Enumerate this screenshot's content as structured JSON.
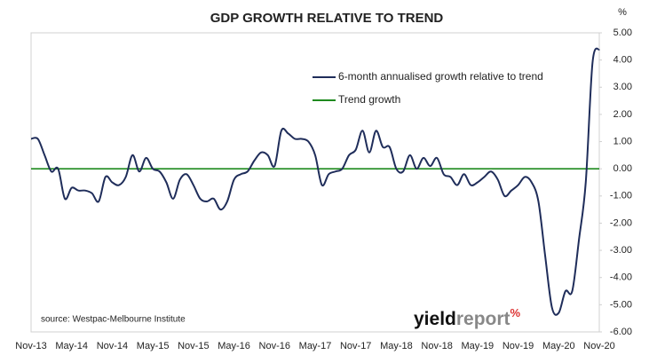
{
  "chart_data": {
    "type": "line",
    "title": "GDP GROWTH RELATIVE TO TREND",
    "y_axis_unit": "%",
    "source": "source: Westpac-Melbourne Institute",
    "logo": [
      "yield",
      "report",
      "%"
    ],
    "categories": [
      "Nov-13",
      null,
      null,
      null,
      null,
      null,
      "May-14",
      null,
      null,
      null,
      null,
      null,
      "Nov-14",
      null,
      null,
      null,
      null,
      null,
      "May-15",
      null,
      null,
      null,
      null,
      null,
      "Nov-15",
      null,
      null,
      null,
      null,
      null,
      "May-16",
      null,
      null,
      null,
      null,
      null,
      "Nov-16",
      null,
      null,
      null,
      null,
      null,
      "May-17",
      null,
      null,
      null,
      null,
      null,
      "Nov-17",
      null,
      null,
      null,
      null,
      null,
      "May-18",
      null,
      null,
      null,
      null,
      null,
      "Nov-18",
      null,
      null,
      null,
      null,
      null,
      "May-19",
      null,
      null,
      null,
      null,
      null,
      "Nov-19",
      null,
      null,
      null,
      null,
      null,
      "May-20",
      null,
      null,
      null,
      null,
      null,
      "Nov-20"
    ],
    "series": [
      {
        "name": "6-month annualised growth relative to trend",
        "color": "#1f2d5a",
        "values": [
          1.1,
          1.1,
          0.5,
          -0.1,
          0.0,
          -1.1,
          -0.7,
          -0.8,
          -0.8,
          -0.9,
          -1.2,
          -0.3,
          -0.5,
          -0.6,
          -0.3,
          0.5,
          -0.1,
          0.4,
          0.0,
          -0.1,
          -0.5,
          -1.1,
          -0.4,
          -0.2,
          -0.6,
          -1.1,
          -1.2,
          -1.1,
          -1.5,
          -1.2,
          -0.4,
          -0.2,
          -0.1,
          0.3,
          0.6,
          0.5,
          0.1,
          1.4,
          1.3,
          1.1,
          1.1,
          1.0,
          0.5,
          -0.6,
          -0.2,
          -0.1,
          0.0,
          0.5,
          0.7,
          1.4,
          0.6,
          1.4,
          0.8,
          0.8,
          0.0,
          -0.1,
          0.5,
          0.0,
          0.4,
          0.1,
          0.4,
          -0.2,
          -0.3,
          -0.6,
          -0.2,
          -0.6,
          -0.5,
          -0.3,
          -0.1,
          -0.4,
          -1.0,
          -0.8,
          -0.6,
          -0.3,
          -0.5,
          -1.2,
          -3.2,
          -5.1,
          -5.3,
          -4.5,
          -4.5,
          -2.6,
          -0.5,
          3.9,
          4.4
        ]
      },
      {
        "name": "Trend growth",
        "color": "#1e8a1e",
        "values": [
          0,
          0,
          0,
          0,
          0,
          0,
          0,
          0,
          0,
          0,
          0,
          0,
          0,
          0,
          0,
          0,
          0,
          0,
          0,
          0,
          0,
          0,
          0,
          0,
          0,
          0,
          0,
          0,
          0,
          0,
          0,
          0,
          0,
          0,
          0,
          0,
          0,
          0,
          0,
          0,
          0,
          0,
          0,
          0,
          0,
          0,
          0,
          0,
          0,
          0,
          0,
          0,
          0,
          0,
          0,
          0,
          0,
          0,
          0,
          0,
          0,
          0,
          0,
          0,
          0,
          0,
          0,
          0,
          0,
          0,
          0,
          0,
          0,
          0,
          0,
          0,
          0,
          0,
          0,
          0,
          0,
          0,
          0,
          0,
          0
        ]
      }
    ],
    "ylim": [
      -6,
      5
    ],
    "yticks": [
      {
        "value": 5,
        "label": "5.00"
      },
      {
        "value": 4,
        "label": "4.00"
      },
      {
        "value": 3,
        "label": "3.00"
      },
      {
        "value": 2,
        "label": "2.00"
      },
      {
        "value": 1,
        "label": "1.00"
      },
      {
        "value": 0,
        "label": "0.00"
      },
      {
        "value": -1,
        "label": "-1.00"
      },
      {
        "value": -2,
        "label": "-2.00"
      },
      {
        "value": -3,
        "label": "-3.00"
      },
      {
        "value": -4,
        "label": "-4.00"
      },
      {
        "value": -5,
        "label": "-5.00"
      },
      {
        "value": -6,
        "label": "-6.00"
      }
    ],
    "y_axis_side": "right",
    "grid": false,
    "legend": "top-center"
  }
}
